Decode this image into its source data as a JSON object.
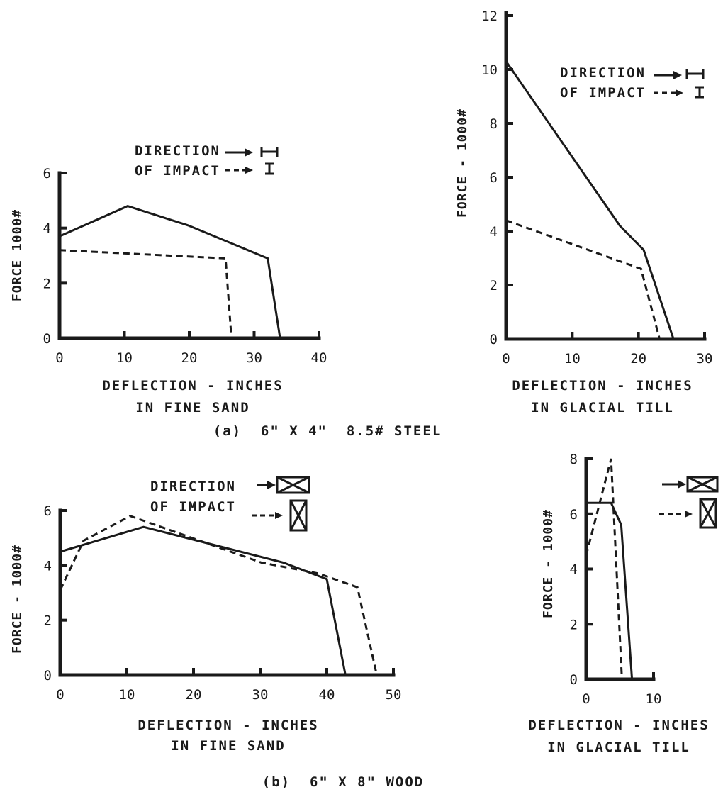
{
  "captions": {
    "a": "(a)  6\" X 4\"  8.5# STEEL",
    "b": "(b)  6\" X 8\" WOOD"
  },
  "chart_data": [
    {
      "id": "a-sand",
      "type": "line",
      "xlabel": "DEFLECTION - INCHES",
      "xlabel2": "IN FINE SAND",
      "ylabel": "FORCE 1000#",
      "xlim": [
        0,
        40
      ],
      "ylim": [
        0,
        6
      ],
      "xticks": [
        0,
        10,
        20,
        30,
        40
      ],
      "yticks": [
        0,
        2,
        4,
        6
      ],
      "legend_lines": [
        "DIRECTION",
        "OF IMPACT"
      ],
      "legend_symbols": [
        "wide-flange-horizontal-icon",
        "wide-flange-vertical-icon"
      ],
      "series": [
        {
          "style": "solid",
          "x": [
            0,
            10.5,
            19.8,
            32.1,
            34.0
          ],
          "y": [
            3.7,
            4.8,
            4.1,
            2.9,
            0
          ]
        },
        {
          "style": "dashed",
          "x": [
            0,
            25.6,
            26.5
          ],
          "y": [
            3.2,
            2.9,
            0
          ]
        }
      ]
    },
    {
      "id": "a-till",
      "type": "line",
      "xlabel": "DEFLECTION - INCHES",
      "xlabel2": "IN GLACIAL TILL",
      "ylabel": "FORCE - 1000#",
      "xlim": [
        0,
        30
      ],
      "ylim": [
        0,
        12
      ],
      "xticks": [
        0,
        10,
        20,
        30
      ],
      "yticks": [
        0,
        2,
        4,
        6,
        8,
        10,
        12
      ],
      "legend_lines": [
        "DIRECTION",
        "OF IMPACT"
      ],
      "legend_symbols": [
        "wide-flange-horizontal-icon",
        "wide-flange-vertical-icon"
      ],
      "series": [
        {
          "style": "solid",
          "x": [
            0,
            17.2,
            20.8,
            25.3
          ],
          "y": [
            10.3,
            4.2,
            3.3,
            0
          ]
        },
        {
          "style": "dashed",
          "x": [
            0,
            20.4,
            23.2
          ],
          "y": [
            4.4,
            2.6,
            0
          ]
        }
      ]
    },
    {
      "id": "b-sand",
      "type": "line",
      "xlabel": "DEFLECTION - INCHES",
      "xlabel2": "IN FINE SAND",
      "ylabel": "FORCE - 1000#",
      "xlim": [
        0,
        50
      ],
      "ylim": [
        0,
        6
      ],
      "xticks": [
        0,
        10,
        20,
        30,
        40,
        50
      ],
      "yticks": [
        0,
        2,
        4,
        6
      ],
      "legend_lines": [
        "DIRECTION",
        "OF IMPACT"
      ],
      "legend_symbols": [
        "timber-flat-icon",
        "timber-upright-icon"
      ],
      "series": [
        {
          "style": "solid",
          "x": [
            0,
            12.5,
            33.5,
            40.0,
            42.8
          ],
          "y": [
            4.5,
            5.4,
            4.1,
            3.5,
            0
          ]
        },
        {
          "style": "dashed",
          "x": [
            0,
            3.5,
            10.5,
            30.2,
            38.8,
            44.6,
            47.5
          ],
          "y": [
            3.1,
            4.9,
            5.8,
            4.1,
            3.7,
            3.2,
            0
          ]
        }
      ]
    },
    {
      "id": "b-till",
      "type": "line",
      "xlabel": "DEFLECTION - INCHES",
      "xlabel2": "IN GLACIAL TILL",
      "ylabel": "FORCE - 1000#",
      "xlim": [
        0,
        10
      ],
      "ylim": [
        0,
        8
      ],
      "xticks": [
        0,
        10
      ],
      "yticks": [
        0,
        2,
        4,
        6,
        8
      ],
      "legend_lines": [],
      "legend_symbols": [
        "timber-flat-icon",
        "timber-upright-icon"
      ],
      "series": [
        {
          "style": "solid",
          "x": [
            0,
            3.7,
            5.2,
            6.8
          ],
          "y": [
            6.4,
            6.4,
            5.6,
            0
          ]
        },
        {
          "style": "dashed",
          "x": [
            0,
            3.7,
            5.3
          ],
          "y": [
            4.5,
            8.0,
            0
          ]
        }
      ]
    }
  ]
}
